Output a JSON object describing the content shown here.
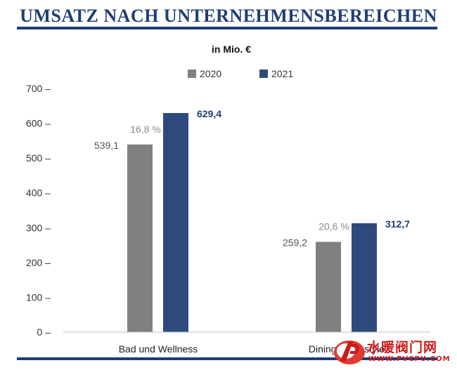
{
  "page": {
    "title": "UMSATZ NACH UNTERNEHMENSBEREICHEN"
  },
  "watermark": {
    "text": "水暖阀门网",
    "url": "WWW.PVCPU.COM"
  },
  "chart_data": {
    "type": "bar",
    "subtitle": "in Mio. €",
    "categories": [
      "Bad und Wellness",
      "Dining & Lifestyle"
    ],
    "series": [
      {
        "name": "2020",
        "values": [
          539.1,
          259.2
        ],
        "labels": [
          "539,1",
          "259,2"
        ],
        "color": "#808080"
      },
      {
        "name": "2021",
        "values": [
          629.4,
          312.7
        ],
        "labels": [
          "629,4",
          "312,7"
        ],
        "color": "#2e4a7d"
      }
    ],
    "growth_labels": [
      "16,8 %",
      "20,6 %"
    ],
    "ylim": [
      0,
      700
    ],
    "yticks": [
      0,
      100,
      200,
      300,
      400,
      500,
      600,
      700
    ],
    "ytick_suffix": " –",
    "legend_position": "top",
    "grid": false,
    "colors": {
      "growth_label": "#8a8a8a",
      "value_2020": "#555555",
      "value_2021": "#1f3e75",
      "axis_text": "#333333"
    }
  }
}
